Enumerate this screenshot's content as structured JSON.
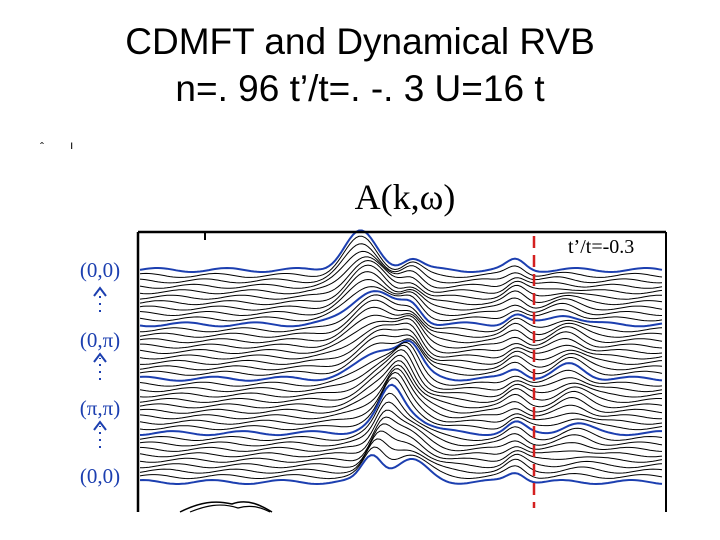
{
  "slide": {
    "title_line1": "CDMFT and Dynamical RVB",
    "title_line2": "n=. 96 t’/t=. -. 3 U=16 t"
  },
  "figure": {
    "title": "A(k,ω)",
    "ratio_label": "t’/t=-0.3",
    "k_labels": [
      "(0,0)",
      "(0,π)",
      "(π,π)",
      "(0,0)"
    ],
    "colors": {
      "highlight_curve": "#1c3fb0",
      "k_label": "#1c3fb0",
      "reference_line": "#d42020",
      "curve": "#000000"
    }
  }
}
